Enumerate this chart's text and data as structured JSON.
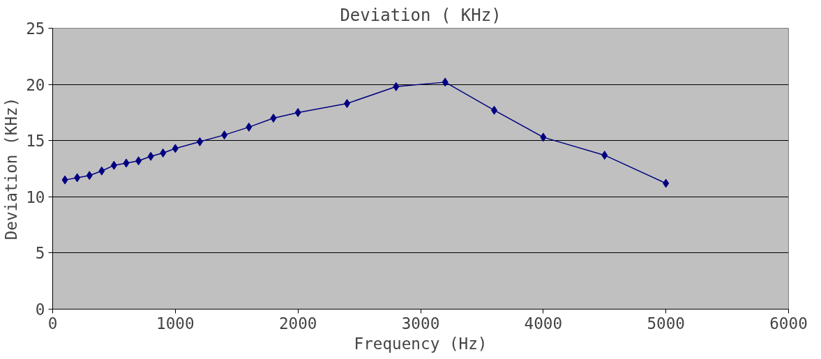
{
  "chart_data": {
    "type": "line",
    "title": "Deviation ( KHz)",
    "xlabel": "Frequency (Hz)",
    "ylabel": "Deviation (KHz)",
    "x": [
      100,
      200,
      300,
      400,
      500,
      600,
      700,
      800,
      900,
      1000,
      1200,
      1400,
      1600,
      1800,
      2000,
      2400,
      2800,
      3200,
      3600,
      4000,
      4500,
      5000
    ],
    "series": [
      {
        "color": "#000080",
        "values": [
          11.5,
          11.7,
          11.9,
          12.3,
          12.8,
          13.0,
          13.2,
          13.6,
          13.9,
          14.3,
          14.9,
          15.5,
          16.2,
          17.0,
          17.5,
          18.3,
          19.8,
          20.2,
          17.7,
          15.3,
          13.7,
          11.2
        ]
      }
    ],
    "xlim": [
      0,
      6000
    ],
    "xticks": [
      0,
      1000,
      2000,
      3000,
      4000,
      5000,
      6000
    ],
    "ylim": [
      0,
      25
    ],
    "yticks": [
      0,
      5,
      10,
      15,
      20,
      25
    ],
    "grid": "y",
    "marker": "diamond",
    "line_style": "solid"
  }
}
